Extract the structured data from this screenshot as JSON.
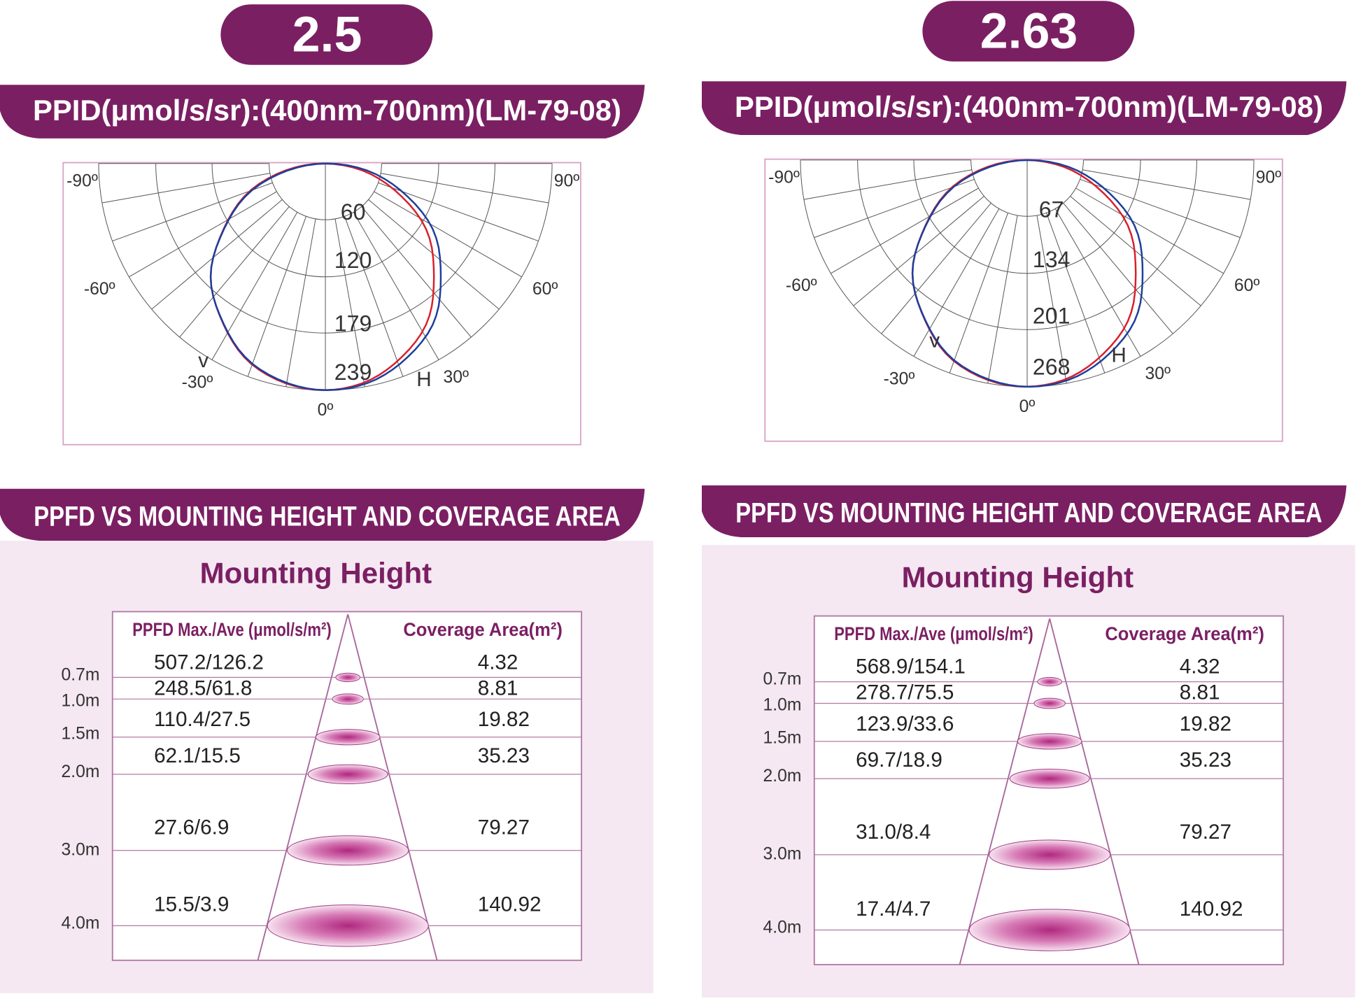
{
  "panels": [
    {
      "badge": "2.5",
      "ppid_title": "PPID(μmol/s/sr):(400nm-700nm)(LM-79-08)",
      "polar": {
        "angle_labels": [
          "-90º",
          "90º",
          "-60º",
          "60º",
          "-30º",
          "30º",
          "0º"
        ],
        "ring_labels": [
          "60",
          "120",
          "179",
          "239"
        ],
        "curve_labels": [
          "v",
          "H"
        ]
      },
      "ppfd_title": "PPFD VS MOUNTING HEIGHT AND COVERAGE AREA",
      "mounting_title": "Mounting Height",
      "table": {
        "headers": [
          "PPFD Max./Ave (μmol/s/m²)",
          "Coverage Area(m²)"
        ],
        "rows": [
          {
            "height": "0.7m",
            "ppfd": "507.2/126.2",
            "coverage": "4.32"
          },
          {
            "height": "1.0m",
            "ppfd": "248.5/61.8",
            "coverage": "8.81"
          },
          {
            "height": "1.5m",
            "ppfd": "110.4/27.5",
            "coverage": "19.82"
          },
          {
            "height": "2.0m",
            "ppfd": "62.1/15.5",
            "coverage": "35.23"
          },
          {
            "height": "3.0m",
            "ppfd": "27.6/6.9",
            "coverage": "79.27"
          },
          {
            "height": "4.0m",
            "ppfd": "15.5/3.9",
            "coverage": "140.92"
          }
        ]
      }
    },
    {
      "badge": "2.63",
      "ppid_title": "PPID(μmol/s/sr):(400nm-700nm)(LM-79-08)",
      "polar": {
        "angle_labels": [
          "-90º",
          "90º",
          "-60º",
          "60º",
          "-30º",
          "30º",
          "0º"
        ],
        "ring_labels": [
          "67",
          "134",
          "201",
          "268"
        ],
        "curve_labels": [
          "v",
          "H"
        ]
      },
      "ppfd_title": "PPFD VS MOUNTING HEIGHT AND COVERAGE AREA",
      "mounting_title": "Mounting Height",
      "table": {
        "headers": [
          "PPFD Max./Ave (μmol/s/m²)",
          "Coverage Area(m²)"
        ],
        "rows": [
          {
            "height": "0.7m",
            "ppfd": "568.9/154.1",
            "coverage": "4.32"
          },
          {
            "height": "1.0m",
            "ppfd": "278.7/75.5",
            "coverage": "8.81"
          },
          {
            "height": "1.5m",
            "ppfd": "123.9/33.6",
            "coverage": "19.82"
          },
          {
            "height": "2.0m",
            "ppfd": "69.7/18.9",
            "coverage": "35.23"
          },
          {
            "height": "3.0m",
            "ppfd": "31.0/8.4",
            "coverage": "79.27"
          },
          {
            "height": "4.0m",
            "ppfd": "17.4/4.7",
            "coverage": "140.92"
          }
        ]
      }
    }
  ]
}
